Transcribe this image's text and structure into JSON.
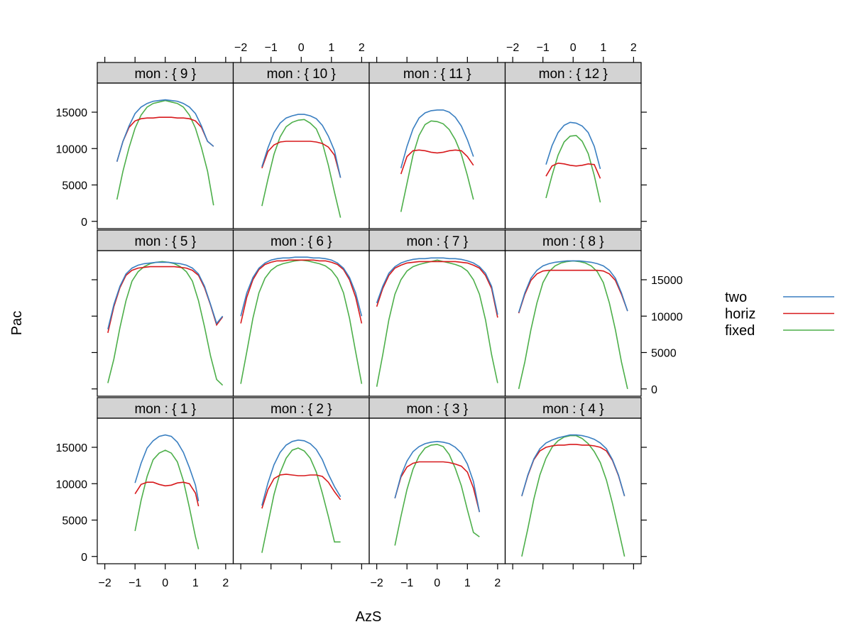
{
  "chart_data": {
    "type": "line",
    "xlabel": "AzS",
    "ylabel": "Pac",
    "xlim": [
      -2.25,
      2.25
    ],
    "ylim": [
      -1000,
      19000
    ],
    "x_ticks": [
      -2,
      -1,
      0,
      1,
      2
    ],
    "y_ticks": [
      0,
      5000,
      10000,
      15000
    ],
    "legend": {
      "position": "right",
      "items": [
        {
          "name": "two",
          "color": "#3a7fc1"
        },
        {
          "name": "horiz",
          "color": "#d7191c"
        },
        {
          "name": "fixed",
          "color": "#4daf4a"
        }
      ]
    },
    "panels": [
      {
        "label": "mon : { 1 }",
        "row": 2,
        "col": 0,
        "x": [
          -1.0,
          -0.8,
          -0.6,
          -0.4,
          -0.2,
          0.0,
          0.2,
          0.4,
          0.6,
          0.8,
          1.0,
          1.1
        ],
        "series": {
          "two": [
            10100,
            12800,
            14900,
            15900,
            16500,
            16700,
            16500,
            15700,
            14300,
            12200,
            9800,
            7600
          ],
          "horiz": [
            8600,
            9900,
            10200,
            10200,
            9900,
            9700,
            9800,
            10100,
            10200,
            10000,
            8700,
            6900
          ],
          "fixed": [
            3500,
            7700,
            11000,
            13300,
            14200,
            14600,
            14200,
            13000,
            10400,
            6700,
            2700,
            1000
          ]
        }
      },
      {
        "label": "mon : { 2 }",
        "row": 2,
        "col": 1,
        "x": [
          -1.3,
          -1.1,
          -0.9,
          -0.7,
          -0.5,
          -0.3,
          -0.1,
          0.1,
          0.3,
          0.5,
          0.7,
          0.9,
          1.1,
          1.3
        ],
        "series": {
          "two": [
            7000,
            10100,
            12600,
            14300,
            15300,
            15800,
            16000,
            15900,
            15500,
            14700,
            13300,
            11300,
            9600,
            8200
          ],
          "horiz": [
            6600,
            9200,
            10700,
            11200,
            11300,
            11200,
            11100,
            11100,
            11200,
            11200,
            11000,
            10200,
            8900,
            7800
          ],
          "fixed": [
            500,
            4500,
            8500,
            11500,
            13500,
            14600,
            14900,
            14500,
            13500,
            11600,
            8700,
            5500,
            2000,
            2000
          ]
        }
      },
      {
        "label": "mon : { 3 }",
        "row": 2,
        "col": 2,
        "x": [
          -1.4,
          -1.2,
          -1.0,
          -0.8,
          -0.6,
          -0.4,
          -0.2,
          0.0,
          0.2,
          0.4,
          0.6,
          0.8,
          1.0,
          1.2,
          1.4
        ],
        "series": {
          "two": [
            8000,
            11100,
            13100,
            14400,
            15100,
            15500,
            15700,
            15800,
            15700,
            15500,
            15000,
            14200,
            12700,
            10300,
            6100
          ],
          "horiz": [
            8000,
            10900,
            12300,
            12800,
            13000,
            13000,
            13000,
            13000,
            13000,
            12900,
            12700,
            12400,
            11600,
            9400,
            6100
          ],
          "fixed": [
            1500,
            5500,
            9200,
            12000,
            13800,
            14900,
            15300,
            15400,
            15100,
            14000,
            12100,
            9700,
            6400,
            3300,
            2700
          ]
        }
      },
      {
        "label": "mon : { 4 }",
        "row": 2,
        "col": 3,
        "x": [
          -1.7,
          -1.5,
          -1.3,
          -1.1,
          -0.9,
          -0.7,
          -0.5,
          -0.3,
          -0.1,
          0.1,
          0.3,
          0.5,
          0.7,
          0.9,
          1.1,
          1.3,
          1.5,
          1.7
        ],
        "series": {
          "two": [
            8300,
            11200,
            13400,
            14800,
            15600,
            16000,
            16300,
            16500,
            16700,
            16700,
            16600,
            16400,
            16100,
            15600,
            14800,
            13300,
            11200,
            8300
          ],
          "horiz": [
            8300,
            11100,
            13300,
            14500,
            15000,
            15200,
            15300,
            15300,
            15400,
            15400,
            15300,
            15300,
            15200,
            15000,
            14500,
            13200,
            11100,
            8300
          ],
          "fixed": [
            0,
            3800,
            7900,
            11200,
            13500,
            15000,
            15900,
            16400,
            16600,
            16600,
            16200,
            15500,
            14400,
            12900,
            10500,
            7300,
            3700,
            0
          ]
        }
      },
      {
        "label": "mon : { 5 }",
        "row": 1,
        "col": 0,
        "x": [
          -1.9,
          -1.7,
          -1.5,
          -1.3,
          -1.1,
          -0.9,
          -0.7,
          -0.5,
          -0.3,
          -0.1,
          0.1,
          0.3,
          0.5,
          0.7,
          0.9,
          1.1,
          1.3,
          1.5,
          1.7,
          1.9
        ],
        "series": {
          "two": [
            8200,
            11600,
            14100,
            15800,
            16600,
            17000,
            17200,
            17300,
            17400,
            17400,
            17400,
            17300,
            17200,
            17000,
            16600,
            15800,
            14100,
            11600,
            9000,
            10000
          ],
          "horiz": [
            7700,
            11300,
            13900,
            15600,
            16300,
            16600,
            16700,
            16800,
            16800,
            16800,
            16800,
            16800,
            16700,
            16600,
            16300,
            15600,
            13900,
            11500,
            8800,
            9900
          ],
          "fixed": [
            800,
            4100,
            8400,
            12100,
            14800,
            16100,
            16800,
            17200,
            17400,
            17500,
            17400,
            17200,
            16800,
            16100,
            14800,
            12100,
            8500,
            4500,
            1300,
            500
          ]
        }
      },
      {
        "label": "mon : { 6 }",
        "row": 1,
        "col": 1,
        "x": [
          -2.0,
          -1.8,
          -1.6,
          -1.4,
          -1.2,
          -1.0,
          -0.8,
          -0.6,
          -0.4,
          -0.2,
          0.0,
          0.2,
          0.4,
          0.6,
          0.8,
          1.0,
          1.2,
          1.4,
          1.6,
          1.8,
          2.0
        ],
        "series": {
          "two": [
            10000,
            13200,
            15300,
            16600,
            17300,
            17700,
            17900,
            18000,
            18000,
            18100,
            18100,
            18100,
            18000,
            18000,
            17900,
            17700,
            17300,
            16600,
            15300,
            13200,
            10000
          ],
          "horiz": [
            9000,
            12600,
            15000,
            16400,
            17100,
            17400,
            17600,
            17600,
            17700,
            17700,
            17700,
            17700,
            17700,
            17600,
            17600,
            17400,
            17100,
            16400,
            15000,
            12600,
            9000
          ],
          "fixed": [
            700,
            5100,
            9700,
            13200,
            15200,
            16300,
            16900,
            17200,
            17400,
            17600,
            17700,
            17600,
            17400,
            17200,
            16900,
            16300,
            15200,
            13200,
            9700,
            5100,
            700
          ]
        }
      },
      {
        "label": "mon : { 7 }",
        "row": 1,
        "col": 2,
        "x": [
          -2.0,
          -1.8,
          -1.6,
          -1.4,
          -1.2,
          -1.0,
          -0.8,
          -0.6,
          -0.4,
          -0.2,
          0.0,
          0.2,
          0.4,
          0.6,
          0.8,
          1.0,
          1.2,
          1.4,
          1.6,
          1.8,
          2.0
        ],
        "series": {
          "two": [
            11800,
            14100,
            15900,
            16800,
            17300,
            17600,
            17800,
            17900,
            17900,
            18000,
            18000,
            18000,
            17900,
            17900,
            17800,
            17600,
            17300,
            16800,
            15900,
            14100,
            10200
          ],
          "horiz": [
            11300,
            13800,
            15600,
            16600,
            17000,
            17300,
            17400,
            17500,
            17500,
            17500,
            17500,
            17500,
            17500,
            17500,
            17400,
            17300,
            17000,
            16600,
            15600,
            13800,
            9800
          ],
          "fixed": [
            300,
            4700,
            9500,
            13000,
            15000,
            16200,
            16800,
            17100,
            17300,
            17500,
            17700,
            17500,
            17300,
            17100,
            16800,
            16200,
            15000,
            13000,
            9500,
            4700,
            800
          ]
        }
      },
      {
        "label": "mon : { 8 }",
        "row": 1,
        "col": 3,
        "x": [
          -1.8,
          -1.6,
          -1.4,
          -1.2,
          -1.0,
          -0.8,
          -0.6,
          -0.4,
          -0.2,
          0.0,
          0.2,
          0.4,
          0.6,
          0.8,
          1.0,
          1.2,
          1.4,
          1.6,
          1.8
        ],
        "series": {
          "two": [
            10500,
            13200,
            15200,
            16300,
            16900,
            17200,
            17400,
            17500,
            17600,
            17600,
            17600,
            17500,
            17400,
            17200,
            16900,
            16300,
            15200,
            13200,
            10700
          ],
          "horiz": [
            10400,
            13000,
            14900,
            15800,
            16200,
            16300,
            16300,
            16300,
            16300,
            16300,
            16300,
            16300,
            16300,
            16300,
            16200,
            15800,
            14900,
            13000,
            10700
          ],
          "fixed": [
            0,
            3700,
            8100,
            11800,
            14600,
            16100,
            16900,
            17300,
            17500,
            17600,
            17500,
            17300,
            16900,
            16100,
            14600,
            11800,
            8100,
            3700,
            0
          ]
        }
      },
      {
        "label": "mon : { 9 }",
        "row": 0,
        "col": 0,
        "x": [
          -1.6,
          -1.4,
          -1.2,
          -1.0,
          -0.8,
          -0.6,
          -0.4,
          -0.2,
          0.0,
          0.2,
          0.4,
          0.6,
          0.8,
          1.0,
          1.2,
          1.4,
          1.6
        ],
        "series": {
          "two": [
            8200,
            11000,
            13100,
            14800,
            15700,
            16200,
            16500,
            16600,
            16700,
            16600,
            16500,
            16200,
            15700,
            14800,
            13100,
            11000,
            10300
          ],
          "horiz": [
            8200,
            11000,
            12900,
            13800,
            14100,
            14200,
            14200,
            14300,
            14300,
            14300,
            14200,
            14200,
            14100,
            13800,
            12900,
            11000,
            10300
          ],
          "fixed": [
            3000,
            6900,
            10100,
            12800,
            14600,
            15700,
            16200,
            16400,
            16600,
            16400,
            16200,
            15700,
            14600,
            12800,
            10100,
            6900,
            2200
          ]
        }
      },
      {
        "label": "mon : { 10 }",
        "row": 0,
        "col": 1,
        "x": [
          -1.3,
          -1.1,
          -0.9,
          -0.7,
          -0.5,
          -0.3,
          -0.1,
          0.1,
          0.3,
          0.5,
          0.7,
          0.9,
          1.1,
          1.3
        ],
        "series": {
          "two": [
            7500,
            10100,
            12200,
            13500,
            14200,
            14500,
            14700,
            14700,
            14500,
            14100,
            13200,
            11700,
            9700,
            6000
          ],
          "horiz": [
            7300,
            9600,
            10500,
            10900,
            11000,
            11000,
            11000,
            11000,
            11000,
            10900,
            10700,
            10200,
            9100,
            6000
          ],
          "fixed": [
            2100,
            5800,
            9200,
            11600,
            13000,
            13600,
            13900,
            14000,
            13500,
            12700,
            10800,
            7700,
            4000,
            500
          ]
        }
      },
      {
        "label": "mon : { 11 }",
        "row": 0,
        "col": 2,
        "x": [
          -1.2,
          -1.0,
          -0.8,
          -0.6,
          -0.4,
          -0.2,
          0.0,
          0.2,
          0.4,
          0.6,
          0.8,
          1.0,
          1.2
        ],
        "series": {
          "two": [
            7300,
            10300,
            12700,
            14200,
            14900,
            15200,
            15300,
            15300,
            15000,
            14300,
            13100,
            11200,
            8900
          ],
          "horiz": [
            6500,
            8900,
            9700,
            9800,
            9700,
            9500,
            9400,
            9500,
            9700,
            9800,
            9700,
            8900,
            7700
          ],
          "fixed": [
            1300,
            5200,
            9100,
            11800,
            13300,
            13800,
            13700,
            13400,
            12600,
            11200,
            9200,
            6300,
            3000
          ]
        }
      },
      {
        "label": "mon : { 12 }",
        "row": 0,
        "col": 3,
        "x": [
          -0.9,
          -0.7,
          -0.5,
          -0.3,
          -0.1,
          0.1,
          0.3,
          0.5,
          0.7,
          0.9
        ],
        "series": {
          "two": [
            7800,
            10400,
            12200,
            13200,
            13600,
            13500,
            13100,
            12200,
            10300,
            7200
          ],
          "horiz": [
            6200,
            7600,
            8000,
            7900,
            7700,
            7600,
            7700,
            7900,
            7800,
            5900
          ],
          "fixed": [
            3200,
            6300,
            9100,
            10900,
            11700,
            11800,
            11000,
            9300,
            6300,
            2600
          ]
        }
      }
    ]
  }
}
